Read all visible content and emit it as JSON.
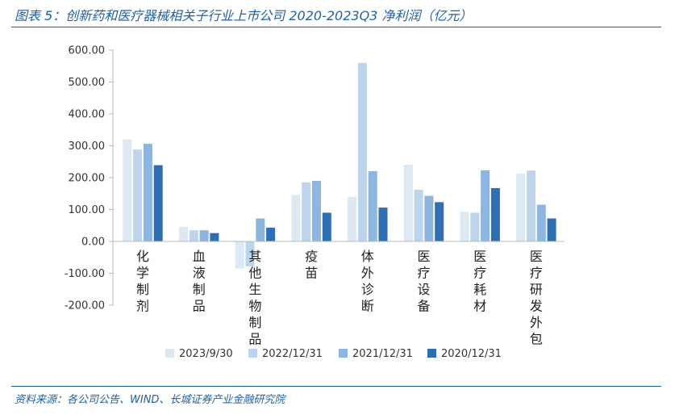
{
  "header": {
    "title": "图表 5：创新药和医疗器械相关子行业上市公司 2020-2023Q3 净利润（亿元）"
  },
  "footer": {
    "source": "资料来源：各公司公告、WIND、长城证券产业金融研究院"
  },
  "chart_data": {
    "type": "bar",
    "title": "",
    "xlabel": "",
    "ylabel": "",
    "ylim": [
      -200,
      600
    ],
    "yticks": [
      "600.00",
      "500.00",
      "400.00",
      "300.00",
      "200.00",
      "100.00",
      "0.00",
      "-100.00",
      "-200.00"
    ],
    "grid": false,
    "legend_position": "bottom",
    "categories": [
      "化学制剂",
      "血液制品",
      "其他生物制品",
      "疫苗",
      "体外诊断",
      "医疗设备",
      "医疗耗材",
      "医疗研发外包"
    ],
    "series": [
      {
        "name": "2023/9/30",
        "color": "#dce8f4",
        "values": [
          320,
          46,
          -85,
          145,
          140,
          240,
          93,
          212
        ]
      },
      {
        "name": "2022/12/31",
        "color": "#bcd4ec",
        "values": [
          288,
          35,
          -78,
          185,
          560,
          162,
          90,
          222
        ]
      },
      {
        "name": "2021/12/31",
        "color": "#8cb5df",
        "values": [
          306,
          35,
          72,
          190,
          220,
          143,
          223,
          115
        ]
      },
      {
        "name": "2020/12/31",
        "color": "#2e6fb3",
        "values": [
          239,
          26,
          43,
          90,
          106,
          123,
          167,
          72
        ]
      }
    ]
  }
}
